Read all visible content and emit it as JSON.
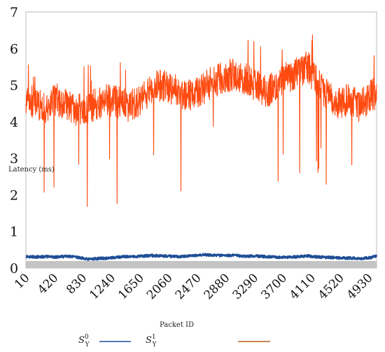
{
  "chart_data": {
    "type": "line",
    "xlabel": "Packet ID",
    "ylabel": "Latency (ms)",
    "xlim": [
      10,
      5040
    ],
    "ylim": [
      0,
      7
    ],
    "yticks": [
      0,
      1,
      2,
      3,
      4,
      5,
      6,
      7
    ],
    "xticks": [
      10,
      420,
      830,
      1240,
      1650,
      2060,
      2470,
      2880,
      3290,
      3700,
      4110,
      4520,
      4930
    ],
    "grid": false,
    "legend_position": "bottom",
    "series": [
      {
        "name": "S_Y^0",
        "color": "#1f4e96",
        "x": [
          10,
          150,
          300,
          450,
          600,
          750,
          900,
          1050,
          1200,
          1350,
          1500,
          1650,
          1800,
          1950,
          2100,
          2250,
          2400,
          2550,
          2700,
          2850,
          3000,
          3150,
          3300,
          3450,
          3600,
          3750,
          3900,
          4050,
          4200,
          4350,
          4500,
          4650,
          4800,
          4950,
          5040
        ],
        "y": [
          0.32,
          0.3,
          0.31,
          0.3,
          0.32,
          0.29,
          0.24,
          0.26,
          0.27,
          0.3,
          0.31,
          0.32,
          0.34,
          0.33,
          0.32,
          0.31,
          0.34,
          0.36,
          0.35,
          0.34,
          0.35,
          0.32,
          0.33,
          0.31,
          0.3,
          0.29,
          0.31,
          0.33,
          0.3,
          0.29,
          0.28,
          0.27,
          0.26,
          0.28,
          0.33
        ]
      },
      {
        "name": "S_Y^1",
        "color": "#ff4a10",
        "x": [
          10,
          150,
          300,
          450,
          600,
          750,
          900,
          1050,
          1200,
          1350,
          1500,
          1650,
          1800,
          1950,
          2100,
          2250,
          2400,
          2550,
          2700,
          2850,
          3000,
          3150,
          3300,
          3450,
          3600,
          3750,
          3900,
          4050,
          4200,
          4350,
          4500,
          4650,
          4800,
          4950,
          5040
        ],
        "y": [
          4.6,
          4.5,
          4.4,
          4.6,
          4.5,
          4.3,
          4.4,
          4.5,
          4.6,
          4.5,
          4.4,
          4.6,
          4.9,
          5.0,
          4.9,
          4.8,
          4.7,
          4.9,
          5.1,
          5.2,
          5.3,
          5.2,
          5.0,
          4.8,
          5.0,
          5.2,
          5.3,
          5.5,
          5.0,
          4.7,
          4.5,
          4.6,
          4.4,
          4.7,
          4.8
        ]
      }
    ],
    "legend": {
      "s0_label": "S",
      "s0_sup": "0",
      "s0_sub": "Y",
      "s1_label": "S",
      "s1_sup": "1",
      "s1_sub": "Y",
      "s1_line_color": "#b85c1a"
    }
  }
}
